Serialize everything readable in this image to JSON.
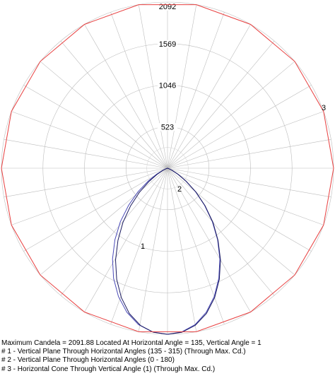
{
  "chart_data": {
    "type": "polar",
    "title": "",
    "radial_ticks": [
      "523",
      "1046",
      "1569",
      "2092"
    ],
    "radial_tick_values": [
      523,
      1046,
      1569,
      2092
    ],
    "rmax": 2092,
    "angular_step_deg": 10,
    "grid": true,
    "series": [
      {
        "label": "1",
        "color": "#4a4ab8",
        "theta_deg": [
          0,
          5,
          10,
          15,
          20,
          25,
          30,
          35,
          40,
          45,
          50,
          55,
          60,
          65,
          70,
          80,
          90
        ],
        "candela": [
          2092,
          2070,
          2000,
          1880,
          1720,
          1530,
          1320,
          1100,
          880,
          660,
          460,
          280,
          150,
          60,
          20,
          0,
          0
        ]
      },
      {
        "label": "2",
        "color": "#1a1a60",
        "theta_deg": [
          0,
          5,
          10,
          15,
          20,
          25,
          30,
          35,
          40,
          45,
          50,
          55,
          60,
          65,
          70,
          80,
          90
        ],
        "candela": [
          2092,
          2075,
          2010,
          1895,
          1735,
          1545,
          1335,
          1110,
          890,
          670,
          470,
          290,
          155,
          65,
          22,
          0,
          0
        ]
      },
      {
        "label": "3",
        "color": "#e84040",
        "type": "cone",
        "value": 2092
      }
    ]
  },
  "legend": {
    "max": "Maximum Candela = 2091.88   Located At Horizontal Angle = 135, Vertical Angle = 1",
    "l1": "# 1 - Vertical Plane Through Horizontal Angles (135 - 315) (Through Max. Cd.)",
    "l2": "# 2 - Vertical Plane Through Horizontal Angles (0 - 180)",
    "l3": "# 3 - Horizontal Cone Through Vertical Angle (1) (Through Max. Cd.)"
  }
}
